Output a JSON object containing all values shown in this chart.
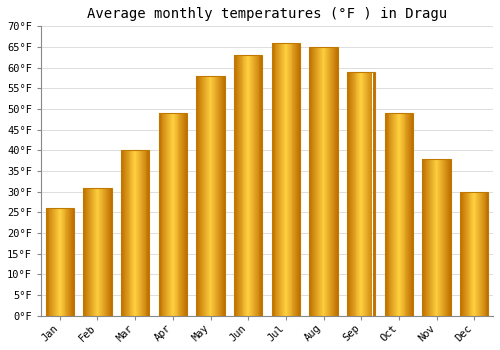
{
  "title": "Average monthly temperatures (°F ) in Dragu",
  "months": [
    "Jan",
    "Feb",
    "Mar",
    "Apr",
    "May",
    "Jun",
    "Jul",
    "Aug",
    "Sep",
    "Oct",
    "Nov",
    "Dec"
  ],
  "values": [
    26,
    31,
    40,
    49,
    58,
    63,
    66,
    65,
    59,
    49,
    38,
    30
  ],
  "bar_color_light": "#FFD060",
  "bar_color_mid": "#FFAA00",
  "bar_color_dark": "#E08000",
  "bar_edge_color": "#C07800",
  "ylim": [
    0,
    70
  ],
  "yticks": [
    0,
    5,
    10,
    15,
    20,
    25,
    30,
    35,
    40,
    45,
    50,
    55,
    60,
    65,
    70
  ],
  "ytick_labels": [
    "0°F",
    "5°F",
    "10°F",
    "15°F",
    "20°F",
    "25°F",
    "30°F",
    "35°F",
    "40°F",
    "45°F",
    "50°F",
    "55°F",
    "60°F",
    "65°F",
    "70°F"
  ],
  "background_color": "#ffffff",
  "grid_color": "#dddddd",
  "title_fontsize": 10,
  "tick_fontsize": 7.5,
  "font_family": "monospace"
}
